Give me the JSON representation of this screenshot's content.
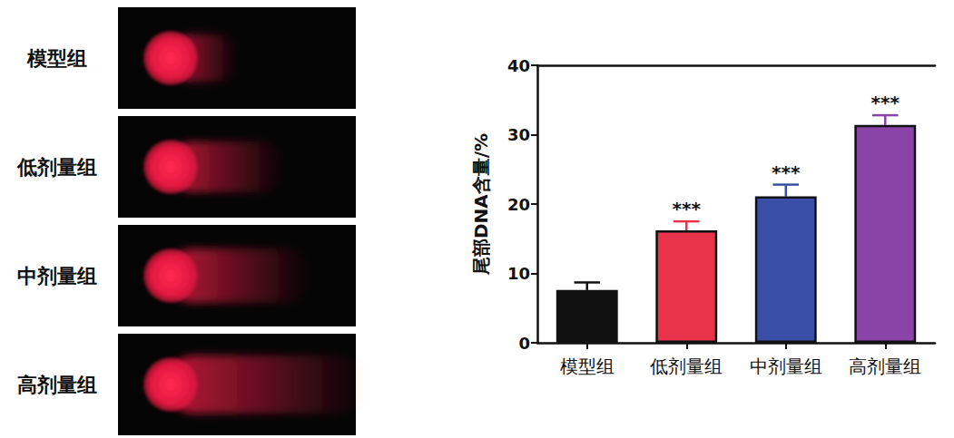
{
  "comet_images": {
    "labels": [
      "模型组",
      "低剂量组",
      "中剂量组",
      "高剂量组"
    ]
  },
  "chart_data": {
    "type": "bar",
    "categories": [
      "模型组",
      "低剂量组",
      "中剂量组",
      "高剂量组"
    ],
    "values": [
      7.6,
      16.2,
      21.1,
      31.4
    ],
    "errors": [
      1.1,
      1.3,
      1.7,
      1.4
    ],
    "colors": [
      "#111111",
      "#e8334a",
      "#3a4fa8",
      "#8a44a8"
    ],
    "y_label": "尾部DNA含量/%",
    "ylim": [
      0,
      40
    ],
    "yticks": [
      0,
      10,
      20,
      30,
      40
    ],
    "grid": false,
    "annotations": [
      {
        "category": "低剂量组",
        "text": "***"
      },
      {
        "category": "中剂量组",
        "text": "***"
      },
      {
        "category": "高剂量组",
        "text": "***"
      }
    ]
  }
}
